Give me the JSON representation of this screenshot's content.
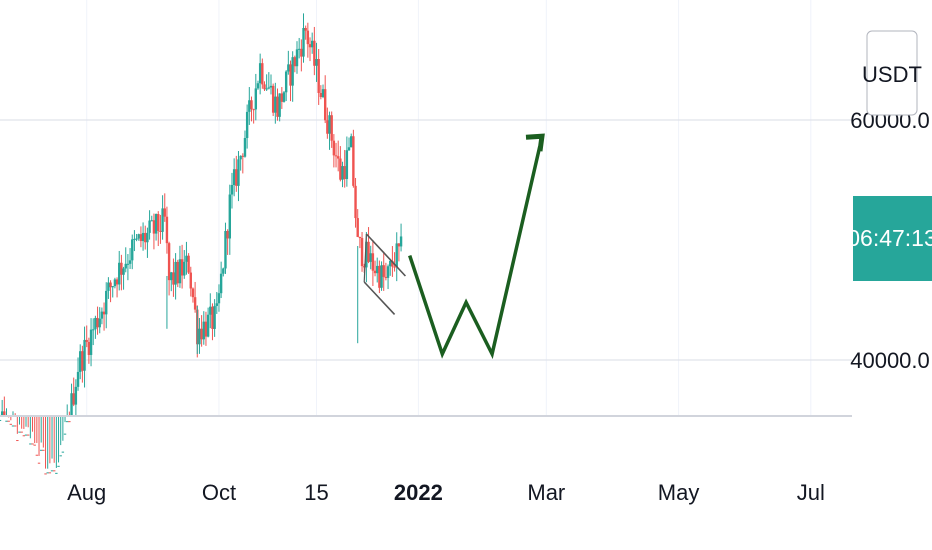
{
  "chart_data": {
    "type": "candlestick",
    "title": "",
    "currency": "USDT",
    "current_timer": "06:47:13",
    "y_axis": {
      "ticks": [
        40000,
        60000
      ],
      "tick_labels": [
        "40000.0",
        "60000.0"
      ],
      "range": [
        34500,
        69500
      ]
    },
    "x_axis": {
      "tick_labels": [
        {
          "label": "Aug",
          "date": "2021-08-01",
          "bold": false
        },
        {
          "label": "Oct",
          "date": "2021-10-01",
          "bold": false
        },
        {
          "label": "15",
          "date": "2021-11-15",
          "bold": false
        },
        {
          "label": "2022",
          "date": "2022-01-01",
          "bold": true
        },
        {
          "label": "Mar",
          "date": "2022-03-01",
          "bold": false
        },
        {
          "label": "May",
          "date": "2022-05-01",
          "bold": false
        },
        {
          "label": "Jul",
          "date": "2022-07-01",
          "bold": false
        }
      ],
      "range": [
        "2021-06-22",
        "2022-07-20"
      ]
    },
    "grid": true,
    "colors": {
      "up": "#26a69a",
      "down": "#ef5350",
      "projection": "#1b5e20",
      "channel": "#555555",
      "timer_bg": "#26a69a"
    },
    "candles": [],
    "channel": {
      "upper": [
        [
          "2021-12-08",
          50500
        ],
        [
          "2021-12-26",
          47000
        ]
      ],
      "lower": [
        [
          "2021-12-07",
          46500
        ],
        [
          "2021-12-21",
          43800
        ]
      ]
    },
    "projection_path": [
      [
        "2021-12-28",
        48700
      ],
      [
        "2022-01-12",
        40500
      ],
      [
        "2022-01-23",
        44800
      ],
      [
        "2022-02-04",
        40500
      ],
      [
        "2022-02-26",
        57800
      ]
    ],
    "projection_arrow_tip": [
      "2022-02-27",
      58400
    ]
  }
}
